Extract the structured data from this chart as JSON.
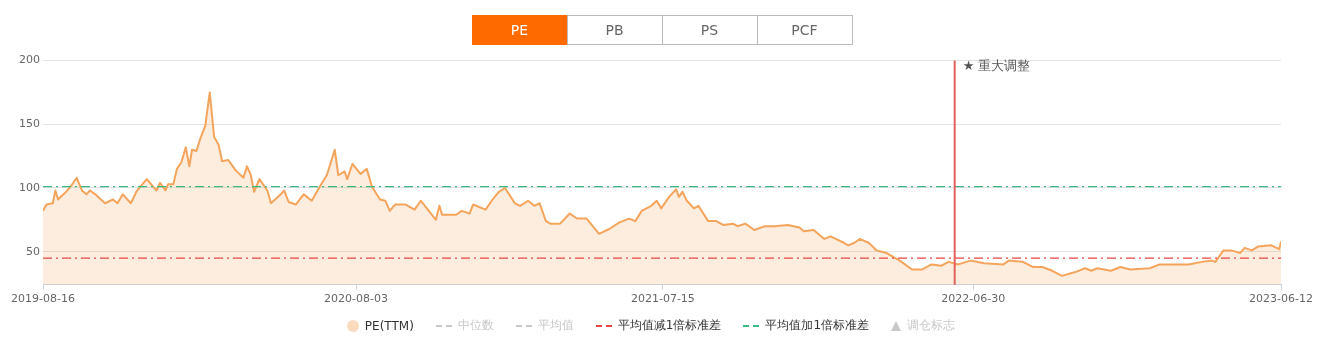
{
  "chart_data": {
    "type": "area",
    "ylim": [
      24,
      200
    ],
    "yticks": [
      50,
      100,
      150,
      200
    ],
    "xlim": [
      "2019-08-16",
      "2023-06-12"
    ],
    "xticks": [
      "2019-08-16",
      "2020-08-03",
      "2021-07-15",
      "2022-06-30",
      "2023-06-12"
    ],
    "grid": "y",
    "legend": "bottom",
    "marker": "none",
    "x": [
      "2019-08-16",
      "2019-08-20",
      "2019-08-27",
      "2019-08-30",
      "2019-09-02",
      "2019-09-11",
      "2019-09-16",
      "2019-09-23",
      "2019-09-29",
      "2019-10-04",
      "2019-10-08",
      "2019-10-14",
      "2019-10-25",
      "2019-11-03",
      "2019-11-08",
      "2019-11-14",
      "2019-11-23",
      "2019-11-30",
      "2019-12-11",
      "2019-12-22",
      "2019-12-26",
      "2020-01-01",
      "2020-01-04",
      "2020-01-10",
      "2020-01-14",
      "2020-01-19",
      "2020-01-24",
      "2020-01-28",
      "2020-01-31",
      "2020-02-05",
      "2020-02-09",
      "2020-02-15",
      "2020-02-20",
      "2020-02-25",
      "2020-03-01",
      "2020-03-05",
      "2020-03-12",
      "2020-03-20",
      "2020-03-29",
      "2020-04-02",
      "2020-04-06",
      "2020-04-10",
      "2020-04-16",
      "2020-04-25",
      "2020-04-29",
      "2020-05-10",
      "2020-05-14",
      "2020-05-19",
      "2020-05-27",
      "2020-06-05",
      "2020-06-14",
      "2020-06-23",
      "2020-07-01",
      "2020-07-10",
      "2020-07-14",
      "2020-07-21",
      "2020-07-24",
      "2020-07-30",
      "2020-08-08",
      "2020-08-15",
      "2020-08-21",
      "2020-08-30",
      "2020-09-05",
      "2020-09-10",
      "2020-09-16",
      "2020-09-28",
      "2020-10-08",
      "2020-10-15",
      "2020-11-01",
      "2020-11-05",
      "2020-11-08",
      "2020-11-24",
      "2020-11-30",
      "2020-12-09",
      "2020-12-13",
      "2020-12-27",
      "2021-01-04",
      "2021-01-11",
      "2021-01-18",
      "2021-01-29",
      "2021-02-04",
      "2021-02-13",
      "2021-02-20",
      "2021-02-26",
      "2021-03-05",
      "2021-03-10",
      "2021-03-21",
      "2021-04-01",
      "2021-04-09",
      "2021-04-20",
      "2021-05-04",
      "2021-05-16",
      "2021-05-27",
      "2021-06-07",
      "2021-06-14",
      "2021-06-21",
      "2021-07-02",
      "2021-07-08",
      "2021-07-13",
      "2021-07-22",
      "2021-07-30",
      "2021-08-02",
      "2021-08-06",
      "2021-08-11",
      "2021-08-19",
      "2021-08-24",
      "2021-09-04",
      "2021-09-13",
      "2021-09-21",
      "2021-10-02",
      "2021-10-07",
      "2021-10-16",
      "2021-10-26",
      "2021-11-07",
      "2021-11-18",
      "2021-12-03",
      "2021-12-16",
      "2021-12-21",
      "2022-01-01",
      "2022-01-13",
      "2022-01-20",
      "2022-02-04",
      "2022-02-09",
      "2022-02-16",
      "2022-02-22",
      "2022-03-04",
      "2022-03-13",
      "2022-03-24",
      "2022-04-08",
      "2022-04-22",
      "2022-05-03",
      "2022-05-14",
      "2022-05-25",
      "2022-06-02",
      "2022-06-13",
      "2022-06-27",
      "2022-07-12",
      "2022-08-03",
      "2022-08-09",
      "2022-08-25",
      "2022-09-05",
      "2022-09-16",
      "2022-09-27",
      "2022-10-08",
      "2022-10-23",
      "2022-11-03",
      "2022-11-10",
      "2022-11-17",
      "2022-12-02",
      "2022-12-13",
      "2022-12-24",
      "2023-01-15",
      "2023-01-26",
      "2023-02-14",
      "2023-02-28",
      "2023-03-15",
      "2023-03-26",
      "2023-03-30",
      "2023-04-08",
      "2023-04-17",
      "2023-04-27",
      "2023-05-02",
      "2023-05-10",
      "2023-05-17",
      "2023-06-01",
      "2023-06-10",
      "2023-06-12"
    ],
    "series": [
      {
        "name": "PE(TTM)",
        "color": "#f5a45c",
        "values": [
          82,
          87,
          88,
          98,
          91,
          97,
          101,
          108,
          98,
          95,
          98,
          95,
          88,
          91,
          88,
          95,
          88,
          98,
          107,
          98,
          104,
          98,
          103,
          103,
          115,
          120,
          132,
          117,
          130,
          129,
          138,
          149,
          175,
          140,
          134,
          121,
          122,
          114,
          108,
          117,
          111,
          97,
          107,
          98,
          88,
          95,
          98,
          89,
          87,
          95,
          90,
          101,
          110,
          130,
          110,
          113,
          107,
          119,
          111,
          115,
          101,
          91,
          90,
          82,
          87,
          87,
          83,
          90,
          75,
          86,
          79,
          79,
          82,
          80,
          87,
          83,
          91,
          97,
          100,
          88,
          86,
          90,
          86,
          88,
          74,
          72,
          72,
          80,
          76,
          76,
          64,
          68,
          73,
          76,
          74,
          82,
          86,
          90,
          84,
          93,
          99,
          93,
          97,
          90,
          84,
          86,
          74,
          74,
          71,
          72,
          70,
          72,
          67,
          70,
          70,
          71,
          69,
          66,
          67,
          60,
          62,
          57,
          55,
          57,
          60,
          57,
          51,
          49,
          43,
          36,
          36,
          40,
          39,
          42,
          40,
          43,
          41,
          40,
          43,
          42,
          38,
          38,
          35,
          31,
          34,
          37,
          35,
          37,
          35,
          38,
          36,
          37,
          40,
          40,
          40,
          42,
          43,
          42,
          51,
          51,
          49,
          53,
          51,
          54,
          55,
          52,
          58
        ]
      }
    ],
    "ref_lines": [
      {
        "axis": "y",
        "value": 45,
        "label": "平均值减1倍标准差",
        "color": "#e84545",
        "line_style": "dashed"
      },
      {
        "axis": "y",
        "value": 101,
        "label": "平均值加1倍标准差",
        "color": "#3cb882",
        "line_style": "dashed"
      },
      {
        "axis": "x",
        "value": "2022-06-09",
        "label": "★ 重大调整",
        "color": "#e0605c",
        "line_style": "solid"
      }
    ],
    "annotations": [
      "PE",
      "PB",
      "PS",
      "PCF",
      "中位数",
      "平均值",
      "调仓标志"
    ]
  }
}
